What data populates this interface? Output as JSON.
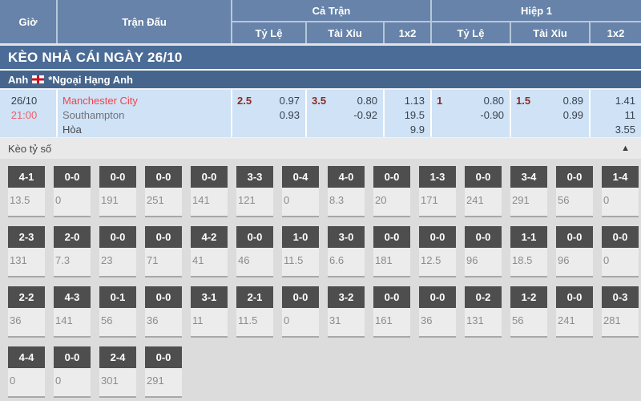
{
  "header": {
    "col_gio": "Giờ",
    "col_match": "Trận Đấu",
    "group_full": "Cả Trận",
    "group_half": "Hiệp 1",
    "sub_tyle": "Tỷ Lệ",
    "sub_taixiu": "Tài Xỉu",
    "sub_1x2": "1x2"
  },
  "title_bar": {
    "text": "KÈO NHÀ CÁI NGÀY 26/10"
  },
  "league_bar": {
    "country": "Anh",
    "league": "*Ngoại Hạng Anh",
    "flag": "england-flag"
  },
  "match": {
    "date": "26/10",
    "time": "21:00",
    "home": "Manchester City",
    "away": "Southampton",
    "draw_label": "Hòa",
    "full": {
      "handicap": {
        "line": "2.5",
        "odd1": "0.97",
        "odd2": "0.93"
      },
      "ou": {
        "line": "3.5",
        "odd1": "0.80",
        "odd2": "-0.92"
      },
      "x12": {
        "v1": "1.13",
        "v2": "19.5",
        "v3": "9.9"
      }
    },
    "half": {
      "handicap": {
        "line": "1",
        "odd1": "0.80",
        "odd2": "-0.90"
      },
      "ou": {
        "line": "1.5",
        "odd1": "0.89",
        "odd2": "0.99"
      },
      "x12": {
        "v1": "1.41",
        "v2": "11",
        "v3": "3.55"
      }
    }
  },
  "score_section": {
    "title": "Kèo tỷ số",
    "collapse_icon": "▲",
    "rows": [
      [
        {
          "score": "4-1",
          "value": "13.5"
        },
        {
          "score": "0-0",
          "value": "0"
        },
        {
          "score": "0-0",
          "value": "191"
        },
        {
          "score": "0-0",
          "value": "251"
        },
        {
          "score": "0-0",
          "value": "141"
        },
        {
          "score": "3-3",
          "value": "121"
        },
        {
          "score": "0-4",
          "value": "0"
        },
        {
          "score": "4-0",
          "value": "8.3"
        },
        {
          "score": "0-0",
          "value": "20"
        },
        {
          "score": "1-3",
          "value": "171"
        },
        {
          "score": "0-0",
          "value": "241"
        },
        {
          "score": "3-4",
          "value": "291"
        },
        {
          "score": "0-0",
          "value": "56"
        },
        {
          "score": "1-4",
          "value": "0"
        }
      ],
      [
        {
          "score": "2-3",
          "value": "131"
        },
        {
          "score": "2-0",
          "value": "7.3"
        },
        {
          "score": "0-0",
          "value": "23"
        },
        {
          "score": "0-0",
          "value": "71"
        },
        {
          "score": "4-2",
          "value": "41"
        },
        {
          "score": "0-0",
          "value": "46"
        },
        {
          "score": "1-0",
          "value": "11.5"
        },
        {
          "score": "3-0",
          "value": "6.6"
        },
        {
          "score": "0-0",
          "value": "181"
        },
        {
          "score": "0-0",
          "value": "12.5"
        },
        {
          "score": "0-0",
          "value": "96"
        },
        {
          "score": "1-1",
          "value": "18.5"
        },
        {
          "score": "0-0",
          "value": "96"
        },
        {
          "score": "0-0",
          "value": "0"
        }
      ],
      [
        {
          "score": "2-2",
          "value": "36"
        },
        {
          "score": "4-3",
          "value": "141"
        },
        {
          "score": "0-1",
          "value": "56"
        },
        {
          "score": "0-0",
          "value": "36"
        },
        {
          "score": "3-1",
          "value": "11"
        },
        {
          "score": "2-1",
          "value": "11.5"
        },
        {
          "score": "0-0",
          "value": "0"
        },
        {
          "score": "3-2",
          "value": "31"
        },
        {
          "score": "0-0",
          "value": "161"
        },
        {
          "score": "0-0",
          "value": "36"
        },
        {
          "score": "0-2",
          "value": "131"
        },
        {
          "score": "1-2",
          "value": "56"
        },
        {
          "score": "0-0",
          "value": "241"
        },
        {
          "score": "0-3",
          "value": "281"
        }
      ],
      [
        {
          "score": "4-4",
          "value": "0"
        },
        {
          "score": "0-0",
          "value": "0"
        },
        {
          "score": "2-4",
          "value": "301"
        },
        {
          "score": "0-0",
          "value": "291"
        }
      ]
    ]
  },
  "colors": {
    "header_blue": "#6783a9",
    "title_blue": "#4b6c97",
    "league_blue": "#45658c",
    "row_light_blue": "#cfe2f6",
    "home_red": "#f5424b",
    "time_red": "#f2606a",
    "handicap_maroon": "#8a2b25",
    "score_box_dark": "#4e4e4e"
  }
}
